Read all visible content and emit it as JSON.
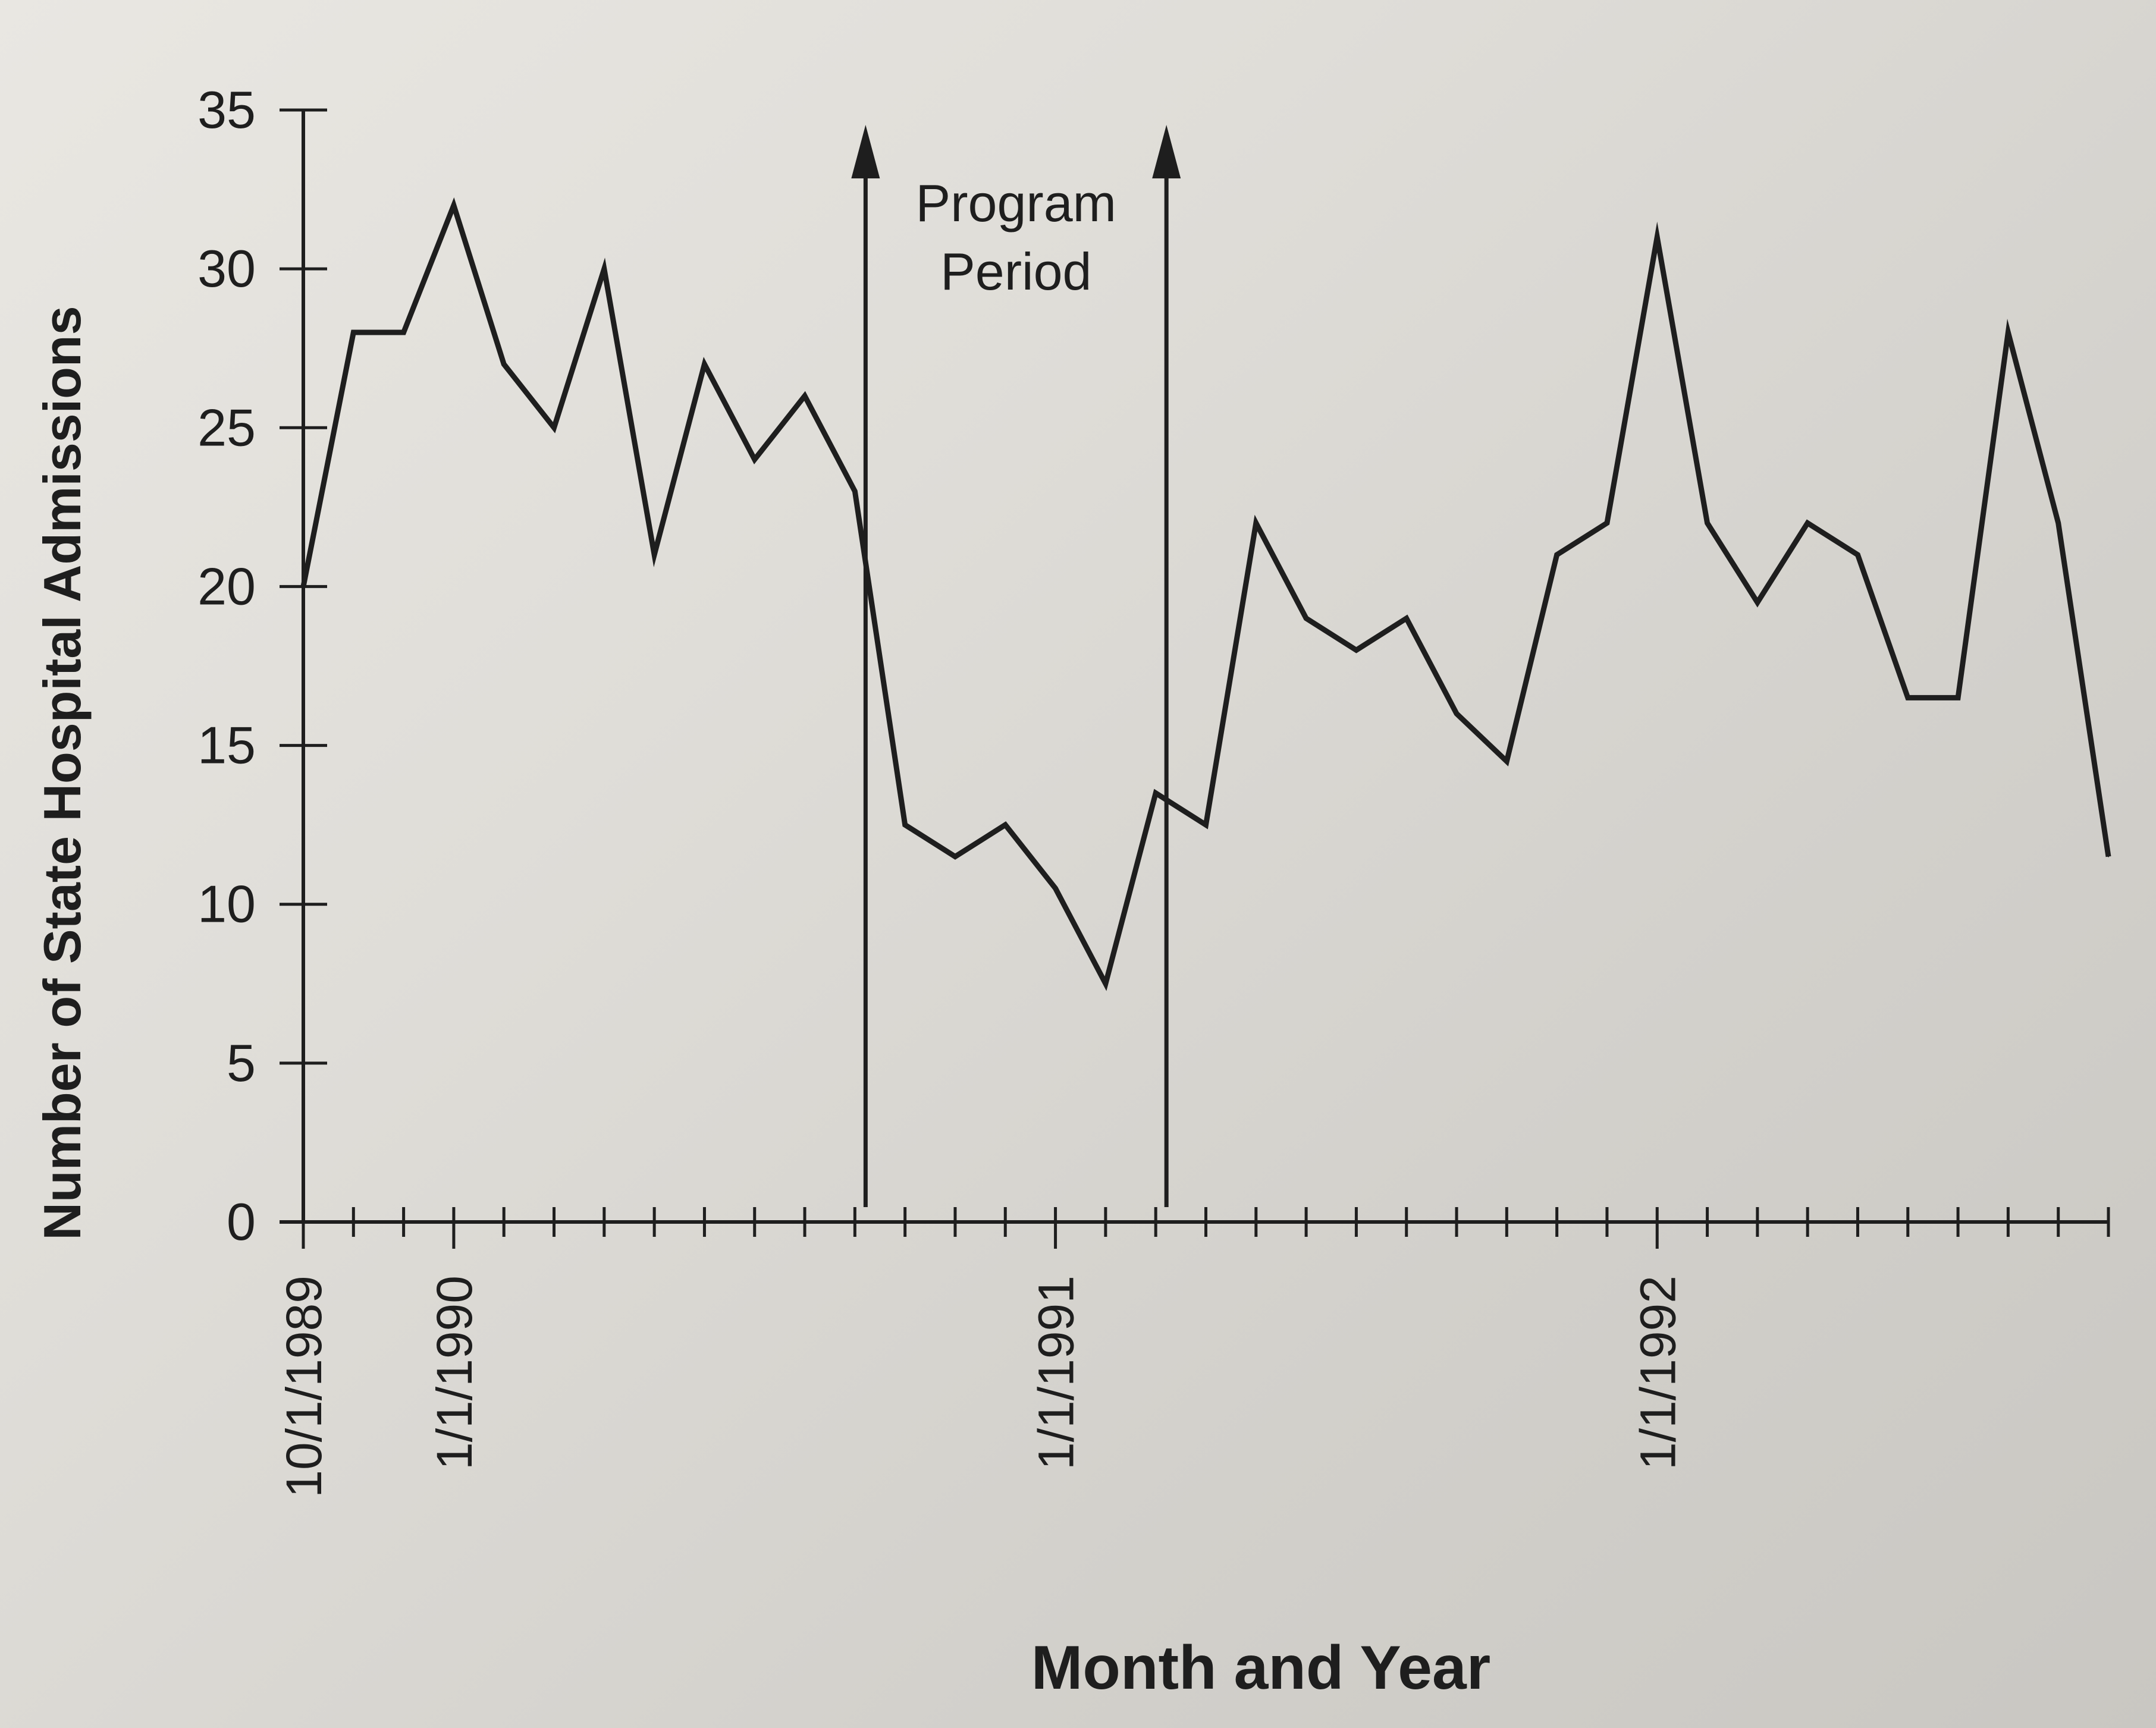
{
  "chart_data": {
    "type": "line",
    "title": "",
    "xlabel": "Month and Year",
    "ylabel": "Number of State Hospital Admissions",
    "ylim": [
      0,
      35
    ],
    "yticks": [
      0,
      5,
      10,
      15,
      20,
      25,
      30,
      35
    ],
    "x_start": "1989-10",
    "x_end": "1992-10",
    "x_tick_labels": [
      {
        "date": "1989-10",
        "label": "10/1/1989"
      },
      {
        "date": "1990-01",
        "label": "1/1/1990"
      },
      {
        "date": "1991-01",
        "label": "1/1/1991"
      },
      {
        "date": "1992-01",
        "label": "1/1/1992"
      }
    ],
    "grid": false,
    "legend": "none",
    "series": [
      {
        "color": "#1e1e1e",
        "points": [
          {
            "x": "1989-10",
            "y": 20
          },
          {
            "x": "1989-11",
            "y": 28
          },
          {
            "x": "1989-12",
            "y": 28
          },
          {
            "x": "1990-01",
            "y": 32
          },
          {
            "x": "1990-02",
            "y": 27
          },
          {
            "x": "1990-03",
            "y": 25
          },
          {
            "x": "1990-04",
            "y": 30
          },
          {
            "x": "1990-05",
            "y": 21
          },
          {
            "x": "1990-06",
            "y": 27
          },
          {
            "x": "1990-07",
            "y": 24
          },
          {
            "x": "1990-08",
            "y": 26
          },
          {
            "x": "1990-09",
            "y": 23
          },
          {
            "x": "1990-10",
            "y": 12.5
          },
          {
            "x": "1990-11",
            "y": 11.5
          },
          {
            "x": "1990-12",
            "y": 12.5
          },
          {
            "x": "1991-01",
            "y": 10.5
          },
          {
            "x": "1991-02",
            "y": 7.5
          },
          {
            "x": "1991-03",
            "y": 13.5
          },
          {
            "x": "1991-04",
            "y": 12.5
          },
          {
            "x": "1991-05",
            "y": 22
          },
          {
            "x": "1991-06",
            "y": 19
          },
          {
            "x": "1991-07",
            "y": 18
          },
          {
            "x": "1991-08",
            "y": 19
          },
          {
            "x": "1991-09",
            "y": 16
          },
          {
            "x": "1991-10",
            "y": 14.5
          },
          {
            "x": "1991-11",
            "y": 21
          },
          {
            "x": "1991-12",
            "y": 22
          },
          {
            "x": "1992-01",
            "y": 31
          },
          {
            "x": "1992-02",
            "y": 22
          },
          {
            "x": "1992-03",
            "y": 19.5
          },
          {
            "x": "1992-04",
            "y": 22
          },
          {
            "x": "1992-05",
            "y": 21
          },
          {
            "x": "1992-06",
            "y": 16.5
          },
          {
            "x": "1992-07",
            "y": 16.5
          },
          {
            "x": "1992-08",
            "y": 28
          },
          {
            "x": "1992-09",
            "y": 22
          },
          {
            "x": "1992-10",
            "y": 11.5
          }
        ]
      }
    ],
    "annotations": [
      {
        "type": "vertical-arrow",
        "x": "1990-09"
      },
      {
        "type": "vertical-arrow",
        "x": "1991-03"
      },
      {
        "type": "text",
        "lines": [
          "Program",
          "Period"
        ]
      }
    ]
  }
}
